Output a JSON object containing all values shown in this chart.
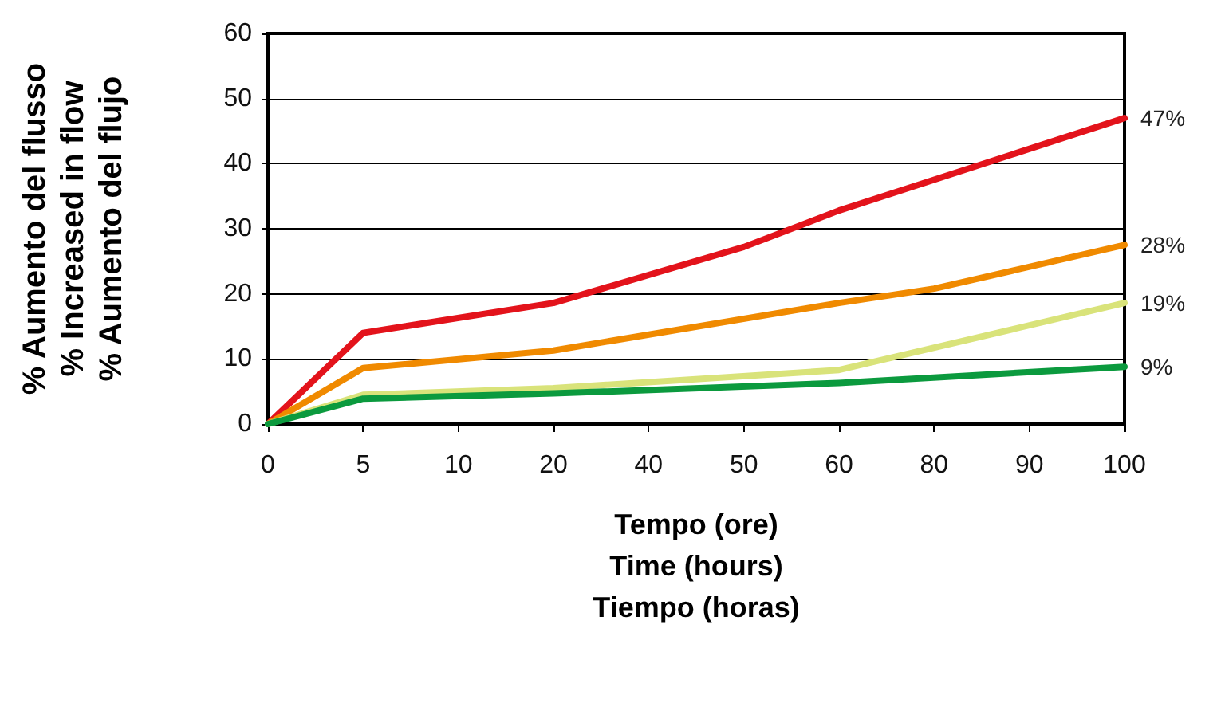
{
  "chart_data": {
    "type": "line",
    "xlabel": "Tempo (ore)\nTime (hours)\nTiempo (horas)",
    "ylabel": "% Aumento del flusso\n% Increased in flow\n% Aumento del flujo",
    "categories": [
      "0",
      "5",
      "10",
      "20",
      "40",
      "50",
      "60",
      "80",
      "90",
      "100"
    ],
    "series": [
      {
        "color": "#e3131b",
        "values": [
          0,
          14,
          null,
          18.6,
          null,
          27.2,
          32.8,
          null,
          null,
          47
        ],
        "value_labels": [
          null,
          null,
          null,
          null,
          null,
          null,
          null,
          null,
          null,
          "47%"
        ]
      },
      {
        "color": "#f08a00",
        "values": [
          0,
          8.6,
          null,
          11.3,
          null,
          null,
          18.6,
          20.8,
          null,
          27.5
        ],
        "value_labels": [
          null,
          null,
          null,
          null,
          null,
          null,
          null,
          null,
          null,
          "28%"
        ]
      },
      {
        "color": "#d9e37a",
        "values": [
          0,
          4.5,
          null,
          5.5,
          null,
          null,
          8.3,
          null,
          null,
          18.6
        ],
        "value_labels": [
          null,
          null,
          null,
          null,
          null,
          null,
          null,
          null,
          null,
          "19%"
        ]
      },
      {
        "color": "#0b9a3e",
        "values": [
          0,
          3.9,
          null,
          4.7,
          null,
          null,
          6.3,
          null,
          null,
          8.8
        ],
        "value_labels": [
          null,
          null,
          null,
          null,
          null,
          null,
          null,
          null,
          null,
          "9%"
        ]
      }
    ],
    "ylim": [
      0,
      60
    ],
    "yticks": [
      0,
      10,
      20,
      30,
      40,
      50,
      60
    ],
    "grid": "y",
    "marker": "none",
    "line_style": "solid"
  }
}
